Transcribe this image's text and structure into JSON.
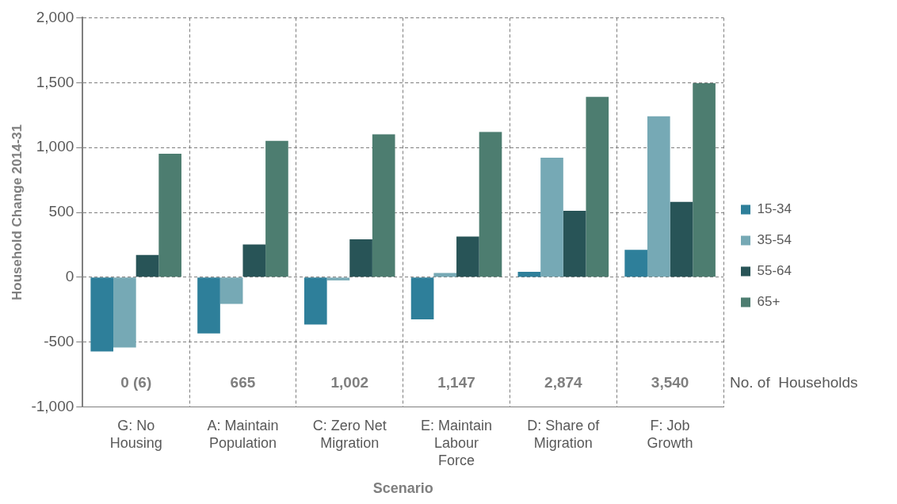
{
  "chart_data": {
    "type": "bar",
    "xlabel": "Scenario",
    "ylabel": "Household Change 2014-31",
    "categories": [
      "G: No Housing",
      "A: Maintain Population",
      "C: Zero Net Migration",
      "E: Maintain Labour Force",
      "D: Share of Migration",
      "F: Job Growth"
    ],
    "series": [
      {
        "name": "15-34",
        "color": "#2e7f9a",
        "values": [
          -572,
          -433,
          -364,
          -325,
          42,
          211
        ]
      },
      {
        "name": "35-54",
        "color": "#76a9b5",
        "values": [
          -542,
          -205,
          -24,
          33,
          922,
          1240
        ]
      },
      {
        "name": "55-64",
        "color": "#285457",
        "values": [
          172,
          253,
          292,
          313,
          512,
          581
        ]
      },
      {
        "name": "65+",
        "color": "#4d7d70",
        "values": [
          952,
          1051,
          1102,
          1120,
          1390,
          1495
        ]
      }
    ],
    "ylim": [
      -1000,
      2000
    ],
    "yticks": [
      {
        "value": -1000,
        "label": "-1,000"
      },
      {
        "value": -500,
        "label": "-500"
      },
      0,
      500,
      {
        "value": 1000,
        "label": "1,000"
      },
      {
        "value": 1500,
        "label": "1,500"
      },
      {
        "value": 2000,
        "label": "2,000"
      }
    ],
    "grid": true,
    "legend": "right",
    "annotations": [
      "0 (6)",
      "665",
      "1,002",
      "1,147",
      "2,874",
      "3,540",
      "No. of  Households"
    ]
  }
}
